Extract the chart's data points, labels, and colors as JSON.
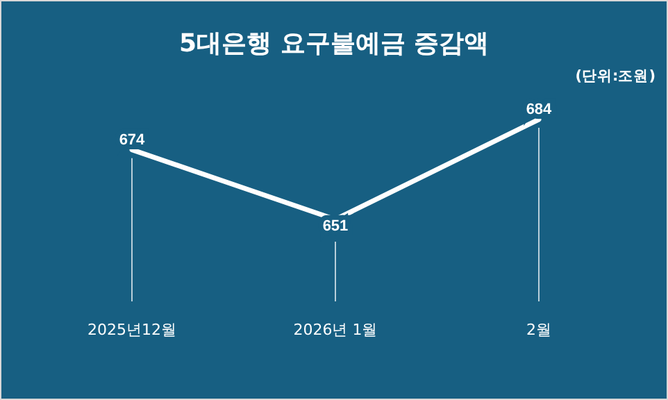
{
  "chart_data": {
    "type": "line",
    "title": "5대은행 요구불예금 증감액",
    "annotations": [
      "(단위:조원)"
    ],
    "categories": [
      "2025년12월",
      "2026년 1월",
      "2월"
    ],
    "series": [
      {
        "color": "#ffffff",
        "values": [
          674,
          651,
          684
        ]
      }
    ],
    "data_labels": true,
    "marker": "none",
    "grid": "x"
  }
}
